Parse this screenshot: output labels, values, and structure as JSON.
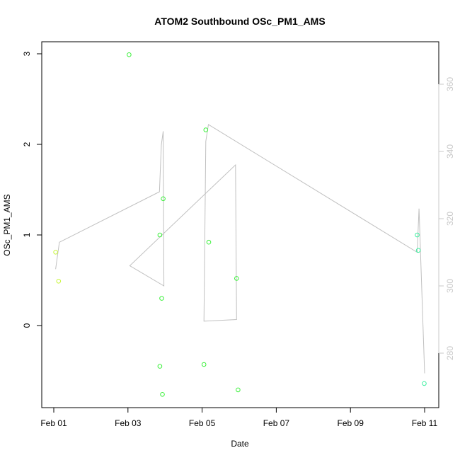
{
  "chart_data": {
    "type": "scatter",
    "title": "ATOM2 Southbound OSc_PM1_AMS",
    "xlabel": "Date",
    "ylabel": "OSc_PM1_AMS",
    "x_ticks": [
      "Feb 01",
      "Feb 03",
      "Feb 05",
      "Feb 07",
      "Feb 09",
      "Feb 11"
    ],
    "xlim": [
      "Feb 01",
      "Feb 11"
    ],
    "y_left_ticks": [
      "0",
      "1",
      "2",
      "3"
    ],
    "y_right_ticks": [
      "280",
      "300",
      "320",
      "340",
      "360"
    ],
    "grid": false,
    "legend": "none",
    "colors": {
      "axis": "#000000",
      "right_axis": "#c8c8c8",
      "line": "#c0c0c0",
      "points_early": "#c8f53c",
      "points_mid": "#3cf03c",
      "points_late": "#3cf0a0"
    },
    "points": [
      {
        "day": 0.05,
        "y": 0.81
      },
      {
        "day": 0.13,
        "y": 0.49
      },
      {
        "day": 2.03,
        "y": 2.99
      },
      {
        "day": 2.86,
        "y": 1.0
      },
      {
        "day": 2.86,
        "y": -0.45
      },
      {
        "day": 2.91,
        "y": 0.3
      },
      {
        "day": 2.93,
        "y": -0.76
      },
      {
        "day": 2.95,
        "y": 1.4
      },
      {
        "day": 4.05,
        "y": -0.43
      },
      {
        "day": 4.1,
        "y": 2.16
      },
      {
        "day": 4.18,
        "y": 0.92
      },
      {
        "day": 4.93,
        "y": 0.52
      },
      {
        "day": 4.97,
        "y": -0.71
      },
      {
        "day": 9.8,
        "y": 1.0
      },
      {
        "day": 9.83,
        "y": 0.83
      },
      {
        "day": 9.99,
        "y": -0.64
      }
    ],
    "line_series_right_axis": [
      {
        "day": 0.05,
        "y": 305.0
      },
      {
        "day": 0.15,
        "y": 313.0
      },
      {
        "day": 2.85,
        "y": 328.0
      },
      {
        "day": 2.9,
        "y": 342.0
      },
      {
        "day": 2.95,
        "y": 346.0
      },
      {
        "day": 2.97,
        "y": 300.0
      },
      {
        "day": 2.05,
        "y": 306.0
      },
      {
        "day": 4.9,
        "y": 336.0
      },
      {
        "day": 4.93,
        "y": 290.0
      },
      {
        "day": 4.05,
        "y": 289.5
      },
      {
        "day": 4.1,
        "y": 343.0
      },
      {
        "day": 4.17,
        "y": 348.0
      },
      {
        "day": 9.8,
        "y": 310.0
      },
      {
        "day": 9.85,
        "y": 323.0
      },
      {
        "day": 10.0,
        "y": 274.0
      }
    ]
  }
}
